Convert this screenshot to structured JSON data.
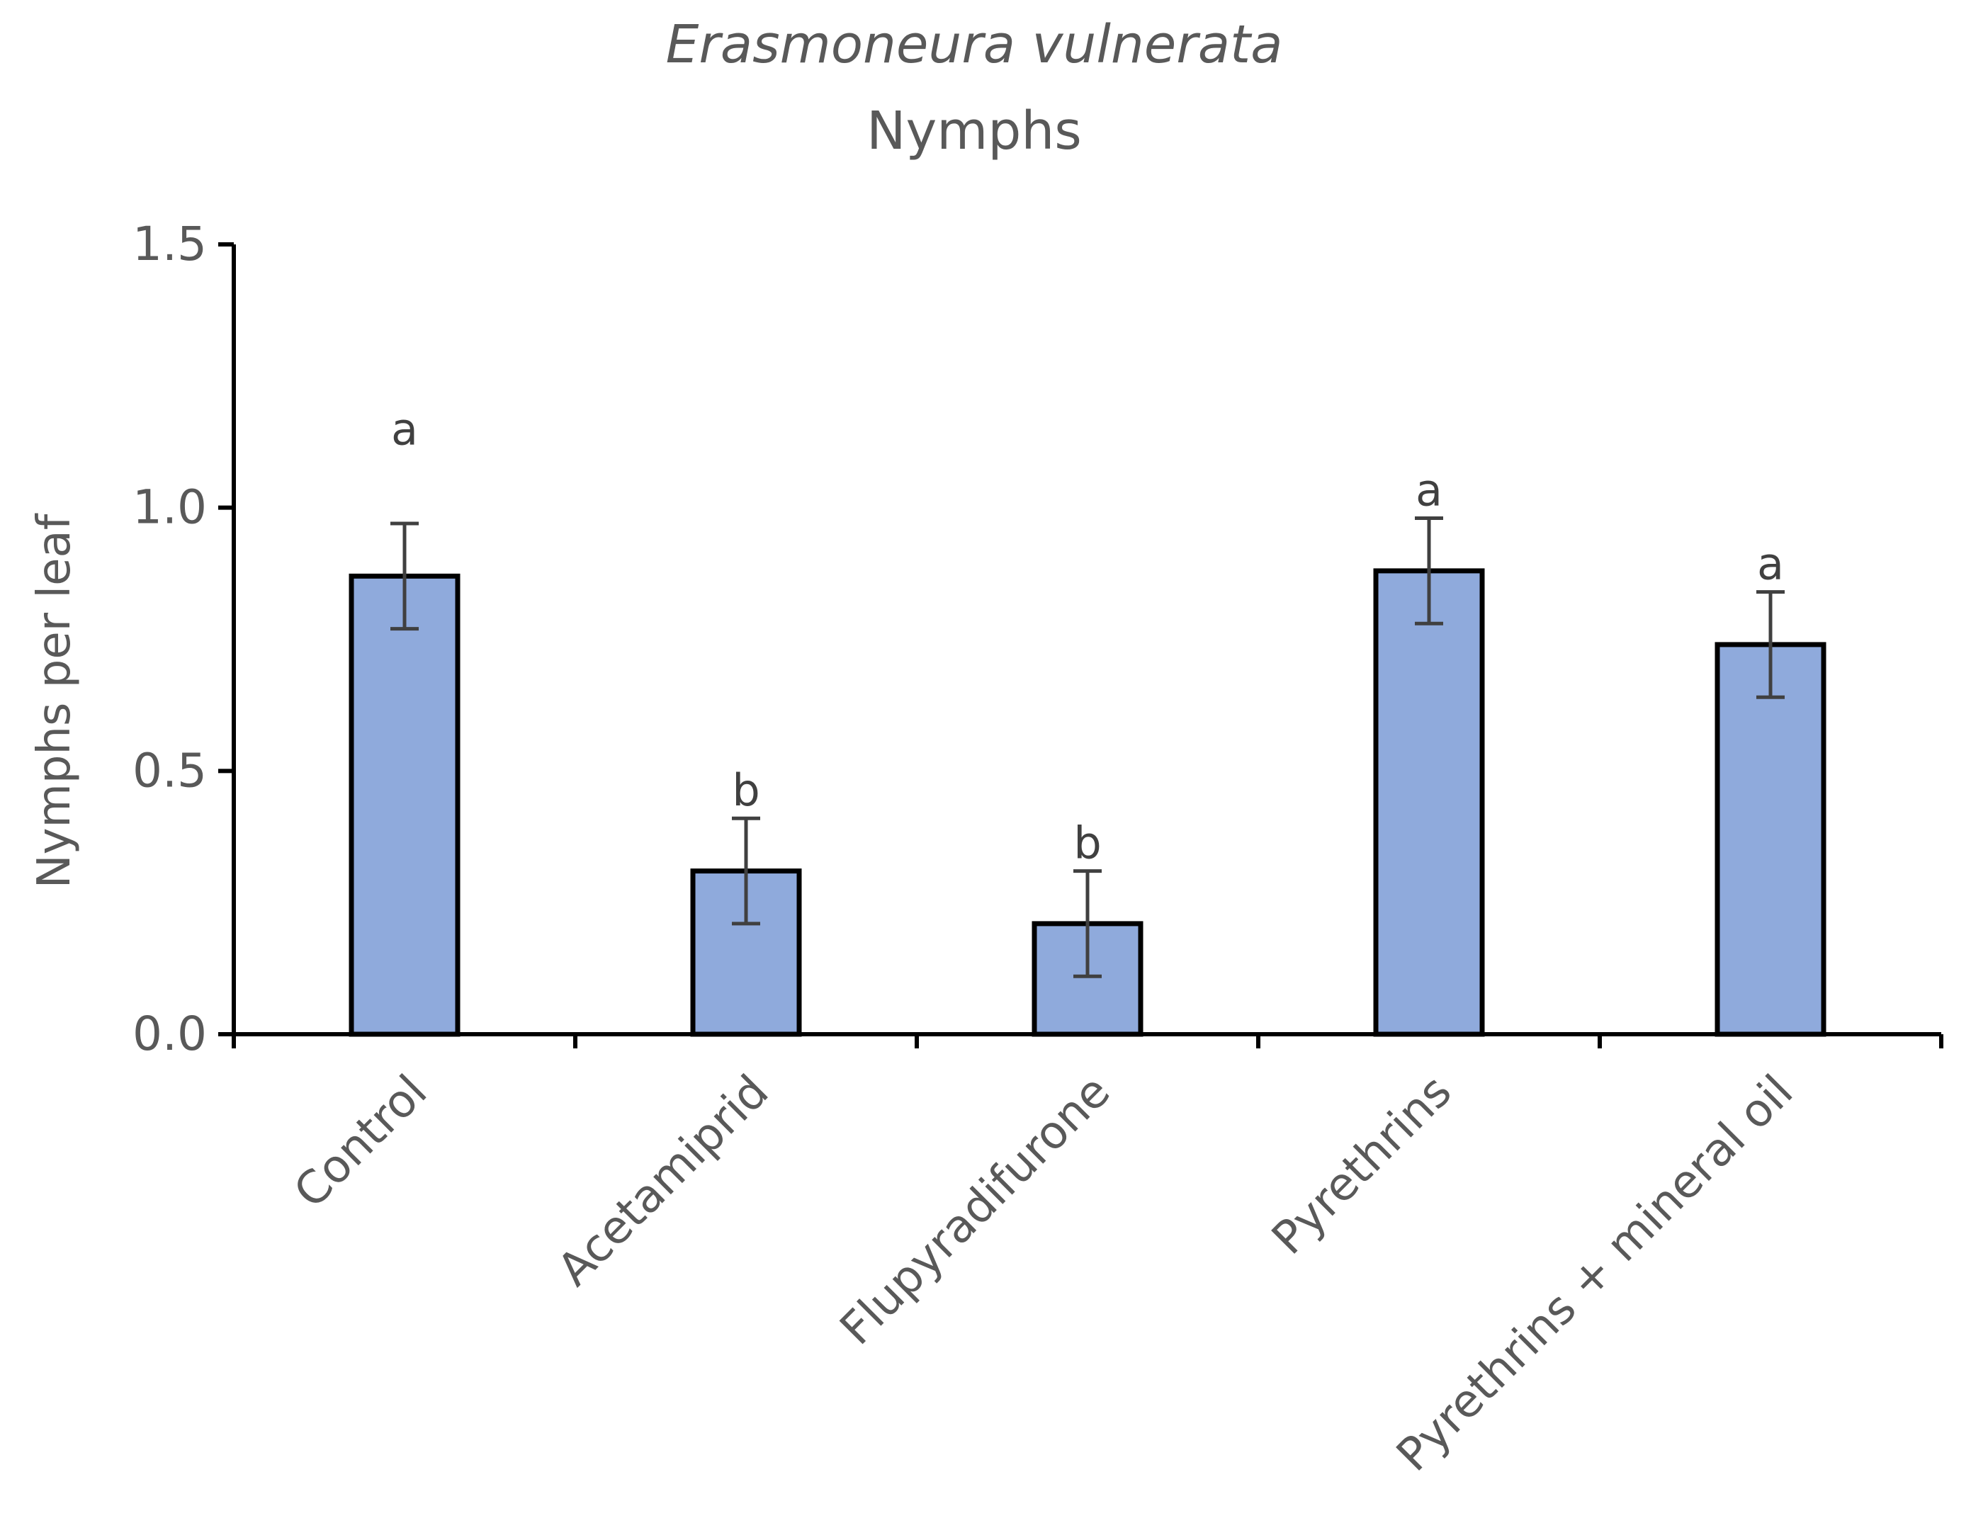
{
  "chart_data": {
    "type": "bar",
    "title": "Erasmoneura vulnerata",
    "subtitle": "Nymphs",
    "xlabel": "",
    "ylabel": "Nymphs per leaf",
    "ylim": [
      0,
      1.5
    ],
    "yticks": [
      "0.0",
      "0.5",
      "1.0",
      "1.5"
    ],
    "ytick_values": [
      0,
      0.5,
      1.0,
      1.5
    ],
    "categories": [
      "Control",
      "Acetamiprid",
      "Flupyradifurone",
      "Pyrethrins",
      "Pyrethrins + mineral oil"
    ],
    "values": [
      0.87,
      0.31,
      0.21,
      0.88,
      0.74
    ],
    "errors": [
      0.1,
      0.1,
      0.1,
      0.1,
      0.1
    ],
    "significance_letters": [
      "a",
      "b",
      "b",
      "a",
      "a"
    ],
    "grid": false,
    "legend": "none",
    "colors": {
      "bar_fill": "#8faadc",
      "bar_edge": "#000000",
      "error_bar": "#404040",
      "axis": "#000000",
      "text": "#595959"
    }
  }
}
